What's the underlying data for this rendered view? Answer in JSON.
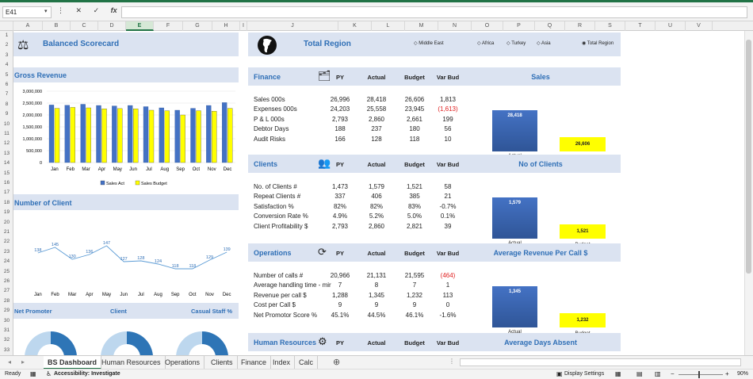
{
  "formula_bar": {
    "cell_ref": "E41",
    "fx": "fx",
    "formula": ""
  },
  "columns": [
    "A",
    "B",
    "C",
    "D",
    "E",
    "F",
    "G",
    "H",
    "I",
    "J",
    "K",
    "L",
    "M",
    "N",
    "O",
    "P",
    "Q",
    "R",
    "S",
    "T",
    "U",
    "V"
  ],
  "selected_column": "E",
  "rows": [
    "1",
    "2",
    "3",
    "4",
    "5",
    "6",
    "7",
    "8",
    "9",
    "10",
    "11",
    "12",
    "13",
    "14",
    "15",
    "16",
    "17",
    "18",
    "19",
    "20",
    "21",
    "22",
    "23",
    "24",
    "25",
    "26",
    "27",
    "28",
    "29",
    "30",
    "31",
    "32",
    "33"
  ],
  "left": {
    "title": "Balanced Scorecard",
    "gross_revenue_title": "Gross Revenue",
    "clients_chart_title": "Number of Client",
    "bottom_labels": [
      "Net Promoter",
      "Client",
      "Casual Staff %"
    ]
  },
  "right": {
    "title": "Total Region",
    "regions": [
      "Middle East",
      "Africa",
      "Turkey",
      "Asia",
      "Total Region"
    ],
    "selected_region": "Total Region",
    "col_headers": [
      "PY",
      "Actual",
      "Budget",
      "Var Bud"
    ],
    "sections": [
      {
        "title": "Finance",
        "chart_title": "Sales",
        "rows": [
          {
            "label": "Sales 000s",
            "py": "26,996",
            "actual": "28,418",
            "budget": "26,606",
            "var": "1,813"
          },
          {
            "label": "Expenses 000s",
            "py": "24,203",
            "actual": "25,558",
            "budget": "23,945",
            "var": "(1,613)",
            "neg": true
          },
          {
            "label": "P & L 000s",
            "py": "2,793",
            "actual": "2,860",
            "budget": "2,661",
            "var": "199"
          },
          {
            "label": "Debtor Days",
            "py": "188",
            "actual": "237",
            "budget": "180",
            "var": "56"
          },
          {
            "label": "Audit Risks",
            "py": "166",
            "actual": "128",
            "budget": "118",
            "var": "10"
          }
        ],
        "bar_actual": "28,418",
        "bar_budget": "26,606"
      },
      {
        "title": "Clients",
        "chart_title": "No of Clients",
        "rows": [
          {
            "label": "No. of Clients #",
            "py": "1,473",
            "actual": "1,579",
            "budget": "1,521",
            "var": "58"
          },
          {
            "label": "Repeat Clients #",
            "py": "337",
            "actual": "406",
            "budget": "385",
            "var": "21"
          },
          {
            "label": "Satisfaction %",
            "py": "82%",
            "actual": "82%",
            "budget": "83%",
            "var": "-0.7%"
          },
          {
            "label": "Conversion Rate %",
            "py": "4.9%",
            "actual": "5.2%",
            "budget": "5.0%",
            "var": "0.1%"
          },
          {
            "label": "Client Profitability $",
            "py": "2,793",
            "actual": "2,860",
            "budget": "2,821",
            "var": "39"
          }
        ],
        "bar_actual": "1,579",
        "bar_budget": "1,521"
      },
      {
        "title": "Operations",
        "chart_title": "Average Revenue Per Call $",
        "rows": [
          {
            "label": "Number of calls #",
            "py": "20,966",
            "actual": "21,131",
            "budget": "21,595",
            "var": "(464)",
            "neg": true
          },
          {
            "label": "Average handling time - mir",
            "py": "7",
            "actual": "8",
            "budget": "7",
            "var": "1"
          },
          {
            "label": "Revenue per call $",
            "py": "1,288",
            "actual": "1,345",
            "budget": "1,232",
            "var": "113"
          },
          {
            "label": "Cost per Call $",
            "py": "9",
            "actual": "9",
            "budget": "9",
            "var": "0"
          },
          {
            "label": "Net Promotor Score %",
            "py": "45.1%",
            "actual": "44.5%",
            "budget": "46.1%",
            "var": "-1.6%"
          }
        ],
        "bar_actual": "1,345",
        "bar_budget": "1,232"
      },
      {
        "title": "Human Resources",
        "chart_title": "Average Days Absent",
        "rows": []
      }
    ],
    "bar_labels": [
      "Actual",
      "Budget"
    ]
  },
  "chart_data": [
    {
      "type": "bar",
      "title": "Gross Revenue",
      "categories": [
        "Jan",
        "Feb",
        "Mar",
        "Apr",
        "May",
        "Jun",
        "Jul",
        "Aug",
        "Sep",
        "Oct",
        "Nov",
        "Dec"
      ],
      "series": [
        {
          "name": "Sales Act",
          "values": [
            2420000,
            2410000,
            2450000,
            2400000,
            2380000,
            2400000,
            2350000,
            2300000,
            2200000,
            2280000,
            2400000,
            2520000
          ],
          "color": "#4472c4"
        },
        {
          "name": "Sales Budget",
          "values": [
            2280000,
            2320000,
            2300000,
            2260000,
            2270000,
            2260000,
            2200000,
            2180000,
            2000000,
            2180000,
            2160000,
            2280000
          ],
          "color": "#ffff00"
        }
      ],
      "yticks": [
        "3,000,000",
        "2,500,000",
        "2,000,000",
        "1,500,000",
        "1,000,000",
        "500,000",
        "0"
      ],
      "ylim": [
        0,
        3000000
      ],
      "legend": "bottom"
    },
    {
      "type": "line",
      "title": "Number of Client",
      "categories": [
        "Jan",
        "Feb",
        "Mar",
        "Apr",
        "May",
        "Jun",
        "Jul",
        "Aug",
        "Sep",
        "Oct",
        "Nov",
        "Dec"
      ],
      "values": [
        138,
        145,
        130,
        136,
        147,
        127,
        128,
        124,
        118,
        118,
        129,
        139
      ],
      "ylim": [
        100,
        160
      ]
    }
  ],
  "tabs": [
    "BS Dashboard",
    "Human Resources",
    "Operations",
    "Clients",
    "Finance",
    "Index",
    "Calc"
  ],
  "active_tab": "BS Dashboard",
  "status": {
    "ready": "Ready",
    "accessibility": "Accessibility: Investigate",
    "display_settings": "Display Settings",
    "zoom": "90%"
  },
  "colors": {
    "band": "#dbe3f1",
    "accent": "#2f6fb6",
    "excel_green": "#217346",
    "bar_blue": "#4472c4",
    "bar_yellow": "#ffff00"
  }
}
